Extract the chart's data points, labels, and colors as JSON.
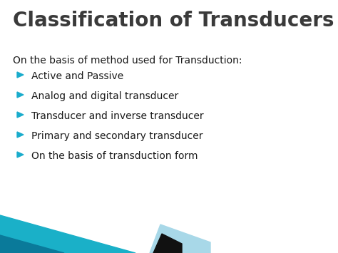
{
  "title": "Classification of Transducers",
  "title_color": "#3a3a3a",
  "title_fontsize": 20,
  "background_color": "#ffffff",
  "subtitle": "On the basis of method used for Transduction:",
  "subtitle_fontsize": 10,
  "subtitle_color": "#1a1a1a",
  "bullet_color": "#1aaccc",
  "bullet_text_color": "#1a1a1a",
  "bullet_fontsize": 10,
  "bullets": [
    "Active and Passive",
    "Analog and digital transducer",
    "Transducer and inverse transducer",
    "Primary and secondary transducer",
    "On the basis of transduction form"
  ],
  "dec_teal_light": "#1ab0c8",
  "dec_teal_dark": "#0a7a9a",
  "dec_black": "#111111",
  "dec_lightblue": "#a8d8e8"
}
